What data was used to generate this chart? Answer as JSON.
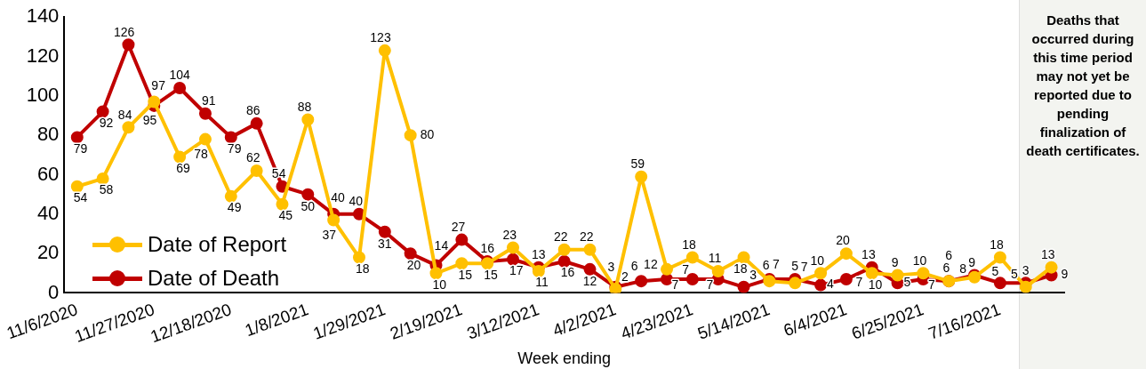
{
  "chart_data": {
    "type": "line",
    "categories": [
      "11/6/2020",
      null,
      null,
      "11/27/2020",
      null,
      null,
      "12/18/2020",
      null,
      null,
      "1/8/2021",
      null,
      null,
      "1/29/2021",
      null,
      null,
      "2/19/2021",
      null,
      null,
      "3/12/2021",
      null,
      null,
      "4/2/2021",
      null,
      null,
      "4/23/2021",
      null,
      null,
      "5/14/2021",
      null,
      null,
      "6/4/2021",
      null,
      null,
      "6/25/2021",
      null,
      null,
      "7/16/2021",
      null,
      null
    ],
    "series": [
      {
        "name": "Date of Report",
        "color": "#ffc000",
        "values": [
          54,
          58,
          84,
          97,
          69,
          78,
          49,
          62,
          45,
          88,
          37,
          18,
          123,
          80,
          10,
          15,
          15,
          23,
          11,
          22,
          22,
          2,
          59,
          12,
          18,
          11,
          18,
          6,
          5,
          10,
          20,
          10,
          9,
          10,
          6,
          8,
          18,
          3,
          13
        ]
      },
      {
        "name": "Date of Death",
        "color": "#c00000",
        "values": [
          79,
          92,
          126,
          95,
          104,
          91,
          79,
          86,
          54,
          50,
          40,
          40,
          31,
          20,
          14,
          27,
          16,
          17,
          13,
          16,
          12,
          3,
          6,
          7,
          7,
          7,
          3,
          7,
          7,
          4,
          7,
          13,
          5,
          7,
          6,
          9,
          5,
          5,
          9
        ]
      }
    ],
    "xlabel": "Week ending",
    "ylim": [
      0,
      140
    ],
    "yticks": [
      0,
      20,
      40,
      60,
      80,
      100,
      120,
      140
    ],
    "grid": false,
    "legend": "bottom left",
    "marker": "circle",
    "line_style": "solid",
    "data_labels": true,
    "annotations": [
      "Deaths that occurred during this time period may not yet be reported due to pending finalization of death certificates."
    ]
  }
}
